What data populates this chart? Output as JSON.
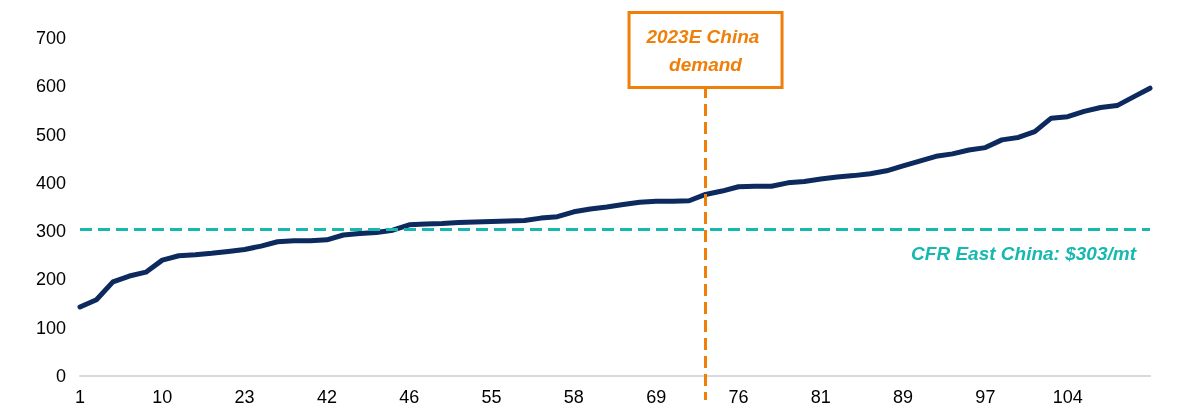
{
  "chart_data": {
    "type": "line",
    "categories": [
      "1",
      null,
      null,
      null,
      null,
      "10",
      null,
      null,
      null,
      null,
      "23",
      null,
      null,
      null,
      null,
      "42",
      null,
      null,
      null,
      null,
      "46",
      null,
      null,
      null,
      null,
      "55",
      null,
      null,
      null,
      null,
      "58",
      null,
      null,
      null,
      null,
      "69",
      null,
      null,
      null,
      null,
      "76",
      null,
      null,
      null,
      null,
      "81",
      null,
      null,
      null,
      null,
      "89",
      null,
      null,
      null,
      null,
      "97",
      null,
      null,
      null,
      null,
      "104",
      null,
      null,
      null,
      null,
      null
    ],
    "series": [
      {
        "color": "#0d2a5e",
        "values": [
          143,
          158,
          195,
          207,
          215,
          240,
          249,
          251,
          254,
          258,
          262,
          269,
          278,
          280,
          280,
          282,
          292,
          295,
          297,
          302,
          313,
          315,
          316,
          318,
          319,
          320,
          321,
          322,
          327,
          330,
          340,
          346,
          350,
          355,
          360,
          362,
          362,
          363,
          376,
          383,
          392,
          393,
          393,
          400,
          403,
          408,
          412,
          415,
          419,
          425,
          435,
          445,
          455,
          460,
          468,
          473,
          489,
          494,
          506,
          534,
          537,
          548,
          556,
          560,
          578,
          596
        ]
      }
    ],
    "ylim": [
      0,
      700
    ],
    "yticks": [
      0,
      100,
      200,
      300,
      400,
      500,
      600,
      700
    ],
    "grid": false,
    "marker": "none",
    "line_style": "solid",
    "ref_lines": [
      {
        "axis": "y",
        "value": 303,
        "label": "CFR East China: $303/mt",
        "color": "#17b8b0",
        "line_style": "dashed"
      }
    ],
    "annotations": [
      "2023E China demand"
    ]
  }
}
